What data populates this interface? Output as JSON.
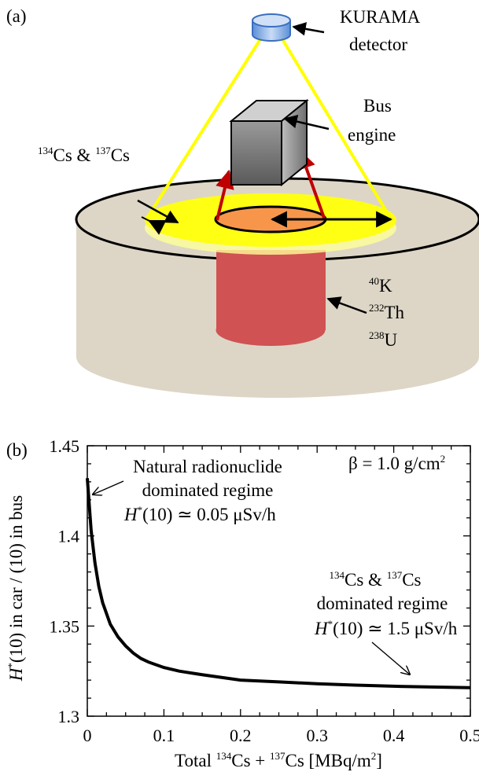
{
  "panel_a": {
    "label": "(a)",
    "detector_label_1": "KURAMA",
    "detector_label_2": "detector",
    "engine_label_1": "Bus",
    "engine_label_2": "engine",
    "cs_iso_1": "134",
    "cs_sym_1": "Cs & ",
    "cs_iso_2": "137",
    "cs_sym_2": "Cs",
    "natural": [
      {
        "iso": "40",
        "sym": "K"
      },
      {
        "iso": "232",
        "sym": "Th"
      },
      {
        "iso": "238",
        "sym": "U"
      }
    ],
    "colors": {
      "ground": "#ddd6c6",
      "cs_layer": "#ffff14",
      "road_center": "#f7964a",
      "subsoil": "#d05252",
      "sight_lines": "#ffff00",
      "engine_arrows": "#c00000",
      "detector": "#8fb3e8",
      "engine_box": "#7f7f7f"
    }
  },
  "panel_b": {
    "label": "(b)",
    "annotation_natural_1": "Natural radionuclide",
    "annotation_natural_2": "dominated regime",
    "annotation_natural_3": "(10) ≃ 0.05 μSv/h",
    "annotation_cs_iso_1": "134",
    "annotation_cs_sym_1": "Cs & ",
    "annotation_cs_iso_2": "137",
    "annotation_cs_sym_2": "Cs",
    "annotation_cs_2": "dominated regime",
    "annotation_cs_3": "(10) ≃ 1.5 μSv/h",
    "beta_label": "β = 1.0 g/cm",
    "beta_exp": "2",
    "ylabel": "(10) in car / (10) in bus",
    "xlabel_parts": [
      "Total ",
      "134",
      "Cs + ",
      "137",
      "Cs [MBq/m",
      "2",
      "]"
    ]
  },
  "chart_data": {
    "type": "line",
    "xlim": [
      0,
      0.5
    ],
    "ylim": [
      1.3,
      1.45
    ],
    "xticks": [
      "0",
      "0.1",
      "0.2",
      "0.3",
      "0.4",
      "0.5"
    ],
    "yticks": [
      "1.3",
      "1.35",
      "1.4",
      "1.45"
    ],
    "grid": false,
    "series": [
      {
        "x": [
          0,
          0.005,
          0.01,
          0.015,
          0.02,
          0.03,
          0.04,
          0.05,
          0.06,
          0.07,
          0.08,
          0.1,
          0.12,
          0.15,
          0.2,
          0.25,
          0.3,
          0.35,
          0.4,
          0.45,
          0.5
        ],
        "y": [
          1.432,
          1.403,
          1.385,
          1.372,
          1.363,
          1.351,
          1.344,
          1.339,
          1.335,
          1.332,
          1.33,
          1.327,
          1.325,
          1.323,
          1.32,
          1.319,
          1.318,
          1.3172,
          1.3166,
          1.3162,
          1.3158
        ]
      }
    ]
  }
}
